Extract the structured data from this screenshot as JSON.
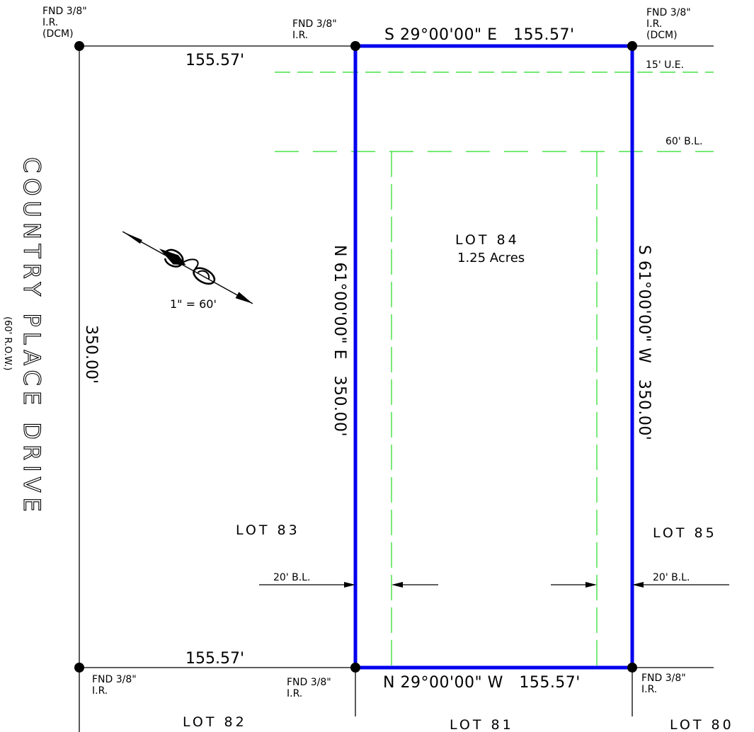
{
  "colors": {
    "lot_boundary": "#0000ee",
    "setback_lines": "#22dd22",
    "linework": "#000000",
    "background": "#ffffff"
  },
  "street": {
    "name": "COUNTRY PLACE DRIVE",
    "row": "(60' R.O.W.)"
  },
  "subject_lot": {
    "name": "LOT 84",
    "area": "1.25 Acres",
    "north_line": "S 29°00'00\" E   155.57'",
    "south_line": "N 29°00'00\" W   155.57'",
    "west_line": "N 61°00'00\" E   350.00'",
    "east_line": "S 61°00'00\" W   350.00'"
  },
  "adjoining_lots": {
    "lot_83": "LOT 83",
    "lot_85": "LOT 85",
    "lot_82": "LOT 82",
    "lot_81": "LOT 81",
    "lot_80": "LOT 80"
  },
  "dimensions": {
    "top_left": "155.57'",
    "bottom_left": "155.57'",
    "left_side": "350.00'"
  },
  "easements": {
    "utility": "15' U.E.",
    "building_line_front": "60' B.L.",
    "building_line_left": "20' B.L.",
    "building_line_right": "20' B.L."
  },
  "monuments": {
    "far_top_left": [
      "FND 3/8\"",
      "I.R.",
      "(DCM)"
    ],
    "top_left": [
      "FND 3/8\"",
      "I.R."
    ],
    "top_right": [
      "FND 3/8\"",
      "I.R.",
      "(DCM)"
    ],
    "far_bottom_left": [
      "FND 3/8\"",
      "I.R."
    ],
    "bottom_left": [
      "FND 3/8\"",
      "I.R."
    ],
    "bottom_right": [
      "FND 3/8\"",
      "I.R."
    ]
  },
  "north_arrow": {
    "icon": "north-arrow-icon",
    "scale": "1\" = 60'"
  }
}
